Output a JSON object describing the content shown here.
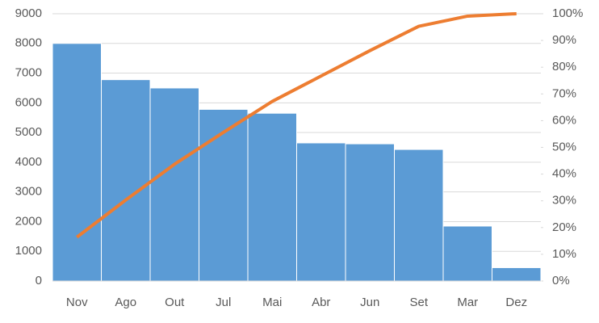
{
  "chart_data": {
    "type": "bar",
    "categories": [
      "Nov",
      "Ago",
      "Out",
      "Jul",
      "Mai",
      "Abr",
      "Jun",
      "Set",
      "Mar",
      "Dez"
    ],
    "series": [
      {
        "type": "bar",
        "color": "#5b9bd5",
        "values": [
          8000,
          6780,
          6500,
          5780,
          5650,
          4650,
          4620,
          4430,
          1850,
          450
        ]
      },
      {
        "type": "line",
        "axis": "y2",
        "color": "#ed7d31",
        "values": [
          16.4,
          30.3,
          43.7,
          55.6,
          67.2,
          76.7,
          86.2,
          95.3,
          99.1,
          100
        ]
      }
    ],
    "ylim": [
      0,
      9000
    ],
    "yticks": [
      0,
      1000,
      2000,
      3000,
      4000,
      5000,
      6000,
      7000,
      8000,
      9000
    ],
    "y2lim": [
      0,
      100
    ],
    "y2ticks": [
      {
        "value": 0,
        "label": "0%"
      },
      {
        "value": 10,
        "label": "10%"
      },
      {
        "value": 20,
        "label": "20%"
      },
      {
        "value": 30,
        "label": "30%"
      },
      {
        "value": 40,
        "label": "40%"
      },
      {
        "value": 50,
        "label": "50%"
      },
      {
        "value": 60,
        "label": "60%"
      },
      {
        "value": 70,
        "label": "70%"
      },
      {
        "value": 80,
        "label": "80%"
      },
      {
        "value": 90,
        "label": "90%"
      },
      {
        "value": 100,
        "label": "100%"
      }
    ],
    "grid": true
  }
}
